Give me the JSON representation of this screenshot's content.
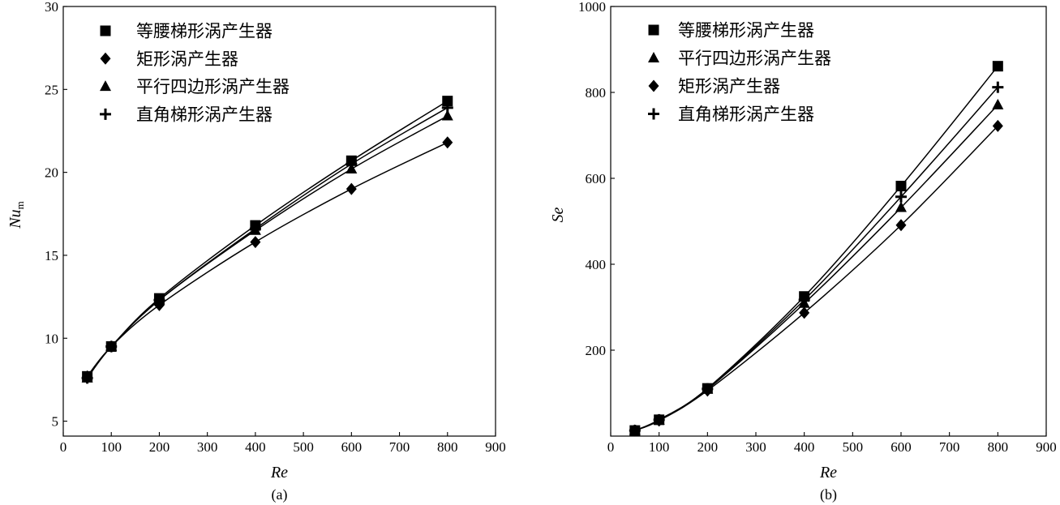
{
  "chart_data": [
    {
      "type": "line",
      "caption": "(a)",
      "xlabel": "Re",
      "ylabel": "Nu",
      "ylabel_subscript": "m",
      "xlim": [
        0,
        900
      ],
      "ylim": [
        4.1,
        30
      ],
      "xticks": [
        0,
        100,
        200,
        300,
        400,
        500,
        600,
        700,
        800,
        900
      ],
      "yticks": [
        5,
        10,
        15,
        20,
        25,
        30
      ],
      "grid": false,
      "legend": "top-left",
      "x": [
        50,
        100,
        200,
        400,
        600,
        800
      ],
      "series": [
        {
          "name": "等腰梯形涡产生器",
          "marker": "square",
          "values": [
            7.7,
            9.5,
            12.4,
            16.8,
            20.7,
            24.3
          ]
        },
        {
          "name": "矩形涡产生器",
          "marker": "diamond",
          "values": [
            7.7,
            9.5,
            12.0,
            15.8,
            19.0,
            21.8
          ]
        },
        {
          "name": "平行四边形涡产生器",
          "marker": "triangle",
          "values": [
            7.6,
            9.5,
            12.3,
            16.5,
            20.2,
            23.4
          ]
        },
        {
          "name": "直角梯形涡产生器",
          "marker": "plus",
          "values": [
            7.6,
            9.5,
            12.3,
            16.6,
            20.5,
            23.9
          ]
        }
      ]
    },
    {
      "type": "line",
      "caption": "(b)",
      "xlabel": "Re",
      "ylabel": "Se",
      "xlim": [
        0,
        900
      ],
      "ylim": [
        0,
        1000
      ],
      "xticks": [
        0,
        100,
        200,
        300,
        400,
        500,
        600,
        700,
        800,
        900
      ],
      "yticks": [
        200,
        400,
        600,
        800,
        1000
      ],
      "grid": false,
      "legend": "top-left",
      "x": [
        50,
        100,
        200,
        400,
        600,
        800
      ],
      "series": [
        {
          "name": "等腰梯形涡产生器",
          "marker": "square",
          "values": [
            13,
            38,
            111,
            325,
            582,
            861
          ]
        },
        {
          "name": "平行四边形涡产生器",
          "marker": "triangle",
          "values": [
            13,
            37,
            109,
            309,
            532,
            771
          ]
        },
        {
          "name": "矩形涡产生器",
          "marker": "diamond",
          "values": [
            13,
            36,
            106,
            287,
            491,
            722
          ]
        },
        {
          "name": "直角梯形涡产生器",
          "marker": "plus",
          "values": [
            13,
            38,
            110,
            317,
            557,
            812
          ]
        }
      ]
    }
  ]
}
